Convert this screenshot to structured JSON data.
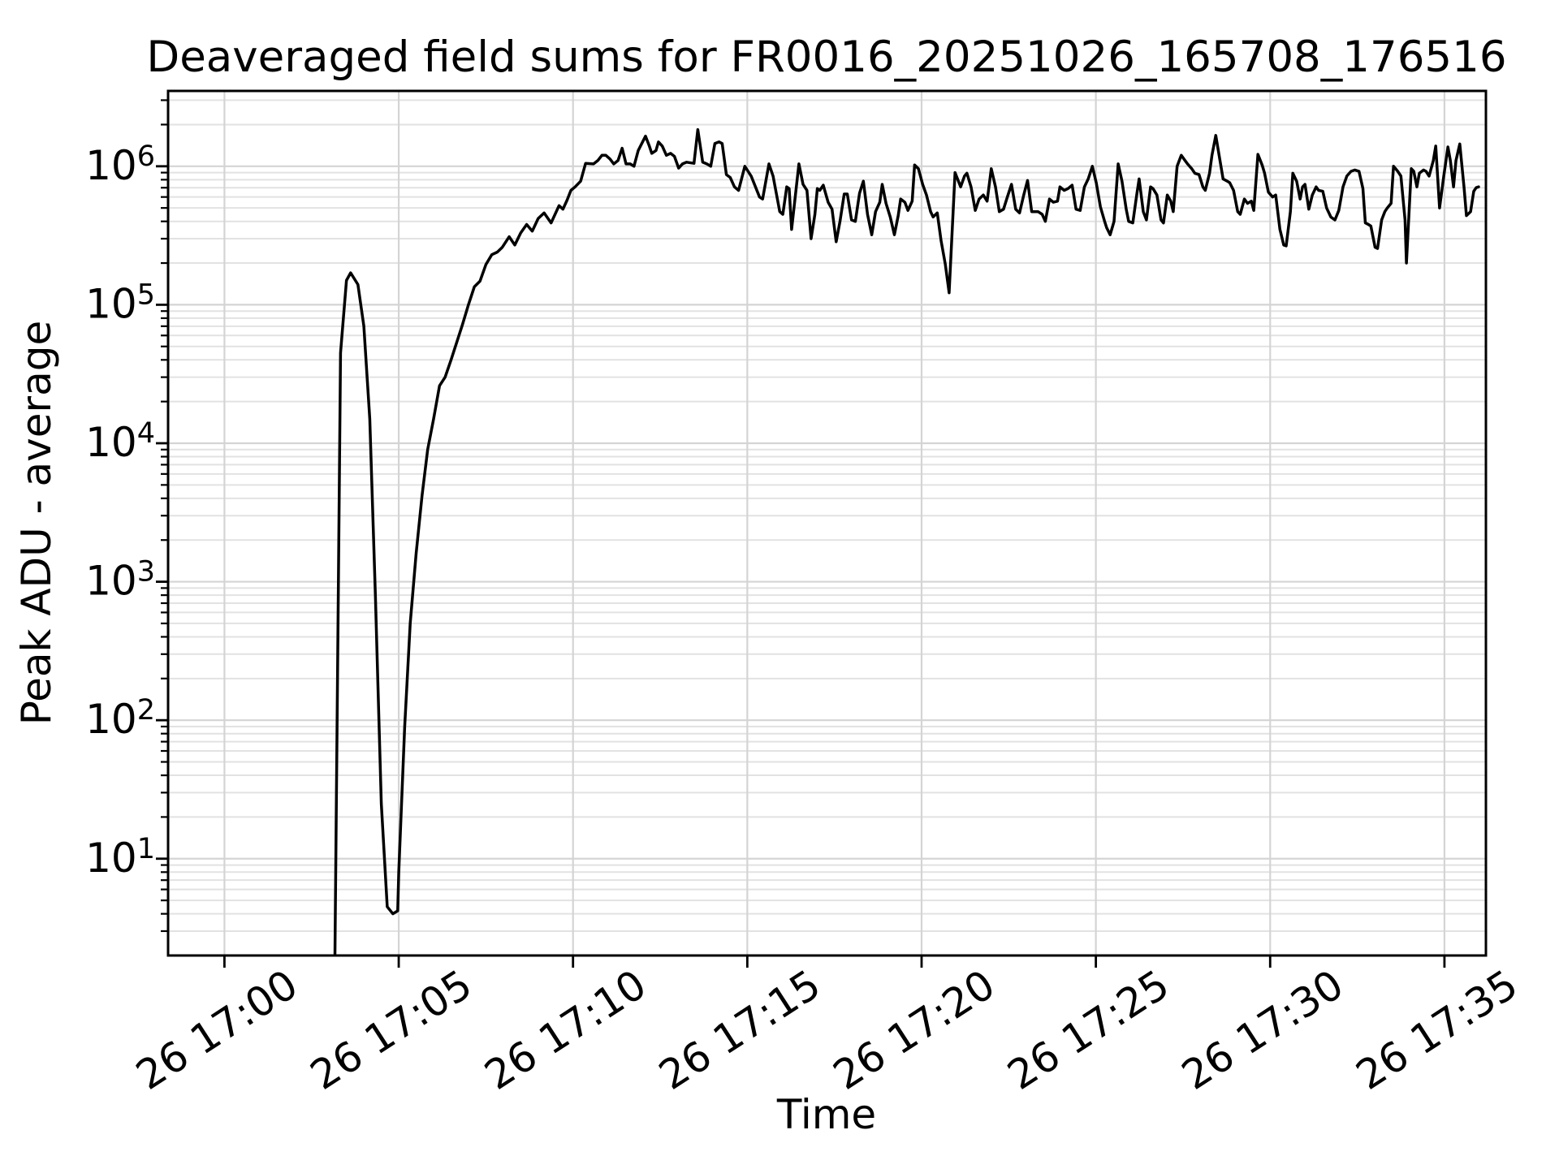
{
  "chart_data": {
    "type": "line",
    "title": "Deaveraged field sums for FR0016_20251026_165708_176516",
    "xlabel": "Time",
    "ylabel": "Peak ADU - average",
    "legend": null,
    "grid": {
      "major": true,
      "minor": true,
      "major_color": "#d4d4d4",
      "minor_color": "#e2e2e2"
    },
    "line_color": "#000000",
    "background_color": "#ffffff",
    "x_axis": {
      "unit": "minutes after 26th 17:00",
      "range_minutes": [
        -1.617,
        36.19
      ],
      "major_ticks_minutes": [
        0,
        5,
        10,
        15,
        20,
        25,
        30,
        35
      ],
      "major_tick_labels": [
        "26 17:00",
        "26 17:05",
        "26 17:10",
        "26 17:15",
        "26 17:20",
        "26 17:25",
        "26 17:30",
        "26 17:35"
      ],
      "label_rotation_deg": 33
    },
    "y_axis": {
      "scale": "log",
      "range": [
        2.0,
        3500000
      ],
      "major_tick_exponents": [
        1,
        2,
        3,
        4,
        5,
        6
      ],
      "minor_tick_multiples": [
        2,
        3,
        4,
        5,
        6,
        7,
        8,
        9
      ]
    },
    "series": [
      {
        "name": "deaveraged-field-sum",
        "points_t_minutes_value": [
          [
            3.17,
            2
          ],
          [
            3.33,
            45000
          ],
          [
            3.5,
            150000
          ],
          [
            3.62,
            170000
          ],
          [
            3.83,
            140000
          ],
          [
            4.0,
            70000
          ],
          [
            4.17,
            15000
          ],
          [
            4.33,
            800
          ],
          [
            4.5,
            25
          ],
          [
            4.67,
            4.5
          ],
          [
            4.83,
            4
          ],
          [
            4.97,
            4.2
          ],
          [
            5.0,
            8
          ],
          [
            5.17,
            90
          ],
          [
            5.33,
            500
          ],
          [
            5.5,
            1600
          ],
          [
            5.67,
            4200
          ],
          [
            5.83,
            9000
          ],
          [
            6.0,
            15000
          ],
          [
            6.17,
            26000
          ],
          [
            6.33,
            30000
          ],
          [
            6.5,
            40000
          ],
          [
            6.67,
            54000
          ],
          [
            6.83,
            72000
          ],
          [
            7.0,
            100000
          ],
          [
            7.17,
            135000
          ],
          [
            7.33,
            148000
          ],
          [
            7.5,
            195000
          ],
          [
            7.67,
            230000
          ],
          [
            7.83,
            240000
          ],
          [
            7.97,
            260000
          ],
          [
            8.17,
            310000
          ],
          [
            8.33,
            270000
          ],
          [
            8.5,
            330000
          ],
          [
            8.67,
            380000
          ],
          [
            8.83,
            340000
          ],
          [
            9.0,
            420000
          ],
          [
            9.17,
            460000
          ],
          [
            9.37,
            390000
          ],
          [
            9.6,
            520000
          ],
          [
            9.71,
            490000
          ],
          [
            9.83,
            570000
          ],
          [
            9.94,
            670000
          ],
          [
            10.06,
            710000
          ],
          [
            10.22,
            780000
          ],
          [
            10.36,
            1050000
          ],
          [
            10.59,
            1040000
          ],
          [
            10.71,
            1100000
          ],
          [
            10.83,
            1200000
          ],
          [
            10.94,
            1200000
          ],
          [
            11.06,
            1130000
          ],
          [
            11.17,
            1040000
          ],
          [
            11.29,
            1100000
          ],
          [
            11.41,
            1350000
          ],
          [
            11.52,
            1040000
          ],
          [
            11.64,
            1040000
          ],
          [
            11.75,
            1000000
          ],
          [
            11.87,
            1300000
          ],
          [
            12.08,
            1650000
          ],
          [
            12.19,
            1400000
          ],
          [
            12.26,
            1240000
          ],
          [
            12.38,
            1300000
          ],
          [
            12.45,
            1500000
          ],
          [
            12.56,
            1400000
          ],
          [
            12.68,
            1200000
          ],
          [
            12.8,
            1240000
          ],
          [
            12.91,
            1180000
          ],
          [
            13.03,
            970000
          ],
          [
            13.14,
            1040000
          ],
          [
            13.26,
            1070000
          ],
          [
            13.47,
            1050000
          ],
          [
            13.58,
            1840000
          ],
          [
            13.72,
            1070000
          ],
          [
            13.84,
            1040000
          ],
          [
            13.95,
            1000000
          ],
          [
            14.07,
            1460000
          ],
          [
            14.19,
            1500000
          ],
          [
            14.28,
            1460000
          ],
          [
            14.4,
            870000
          ],
          [
            14.51,
            830000
          ],
          [
            14.63,
            710000
          ],
          [
            14.75,
            670000
          ],
          [
            14.93,
            1000000
          ],
          [
            15.11,
            850000
          ],
          [
            15.35,
            600000
          ],
          [
            15.44,
            580000
          ],
          [
            15.62,
            1040000
          ],
          [
            15.74,
            850000
          ],
          [
            15.93,
            470000
          ],
          [
            16.02,
            450000
          ],
          [
            16.13,
            710000
          ],
          [
            16.2,
            690000
          ],
          [
            16.27,
            350000
          ],
          [
            16.48,
            1040000
          ],
          [
            16.6,
            740000
          ],
          [
            16.71,
            670000
          ],
          [
            16.83,
            300000
          ],
          [
            16.94,
            450000
          ],
          [
            17.01,
            690000
          ],
          [
            17.08,
            670000
          ],
          [
            17.18,
            730000
          ],
          [
            17.32,
            550000
          ],
          [
            17.43,
            490000
          ],
          [
            17.55,
            285000
          ],
          [
            17.66,
            400000
          ],
          [
            17.78,
            630000
          ],
          [
            17.87,
            630000
          ],
          [
            17.99,
            410000
          ],
          [
            18.1,
            400000
          ],
          [
            18.22,
            640000
          ],
          [
            18.33,
            780000
          ],
          [
            18.45,
            450000
          ],
          [
            18.57,
            320000
          ],
          [
            18.68,
            470000
          ],
          [
            18.8,
            550000
          ],
          [
            18.87,
            740000
          ],
          [
            18.98,
            540000
          ],
          [
            19.1,
            430000
          ],
          [
            19.22,
            320000
          ],
          [
            19.33,
            440000
          ],
          [
            19.4,
            580000
          ],
          [
            19.52,
            550000
          ],
          [
            19.61,
            480000
          ],
          [
            19.73,
            560000
          ],
          [
            19.8,
            1020000
          ],
          [
            19.91,
            960000
          ],
          [
            20.03,
            740000
          ],
          [
            20.14,
            620000
          ],
          [
            20.26,
            470000
          ],
          [
            20.33,
            430000
          ],
          [
            20.45,
            460000
          ],
          [
            20.56,
            290000
          ],
          [
            20.68,
            196000
          ],
          [
            20.79,
            122000
          ],
          [
            20.96,
            900000
          ],
          [
            21.12,
            710000
          ],
          [
            21.23,
            850000
          ],
          [
            21.3,
            890000
          ],
          [
            21.42,
            710000
          ],
          [
            21.54,
            480000
          ],
          [
            21.65,
            580000
          ],
          [
            21.77,
            620000
          ],
          [
            21.88,
            560000
          ],
          [
            22.0,
            960000
          ],
          [
            22.12,
            710000
          ],
          [
            22.23,
            470000
          ],
          [
            22.35,
            490000
          ],
          [
            22.46,
            600000
          ],
          [
            22.58,
            740000
          ],
          [
            22.7,
            490000
          ],
          [
            22.81,
            460000
          ],
          [
            22.93,
            620000
          ],
          [
            23.04,
            790000
          ],
          [
            23.16,
            470000
          ],
          [
            23.34,
            470000
          ],
          [
            23.46,
            450000
          ],
          [
            23.55,
            400000
          ],
          [
            23.67,
            580000
          ],
          [
            23.78,
            550000
          ],
          [
            23.9,
            560000
          ],
          [
            23.97,
            710000
          ],
          [
            24.09,
            670000
          ],
          [
            24.2,
            690000
          ],
          [
            24.32,
            730000
          ],
          [
            24.43,
            490000
          ],
          [
            24.55,
            480000
          ],
          [
            24.67,
            710000
          ],
          [
            24.78,
            810000
          ],
          [
            24.9,
            1000000
          ],
          [
            25.01,
            760000
          ],
          [
            25.13,
            510000
          ],
          [
            25.25,
            400000
          ],
          [
            25.31,
            360000
          ],
          [
            25.41,
            320000
          ],
          [
            25.52,
            400000
          ],
          [
            25.64,
            1040000
          ],
          [
            25.75,
            780000
          ],
          [
            25.87,
            490000
          ],
          [
            25.94,
            400000
          ],
          [
            26.06,
            390000
          ],
          [
            26.17,
            620000
          ],
          [
            26.24,
            810000
          ],
          [
            26.36,
            470000
          ],
          [
            26.45,
            410000
          ],
          [
            26.57,
            710000
          ],
          [
            26.64,
            690000
          ],
          [
            26.75,
            620000
          ],
          [
            26.87,
            410000
          ],
          [
            26.94,
            390000
          ],
          [
            27.05,
            620000
          ],
          [
            27.15,
            560000
          ],
          [
            27.22,
            470000
          ],
          [
            27.33,
            1000000
          ],
          [
            27.45,
            1200000
          ],
          [
            27.56,
            1100000
          ],
          [
            27.63,
            1040000
          ],
          [
            27.75,
            960000
          ],
          [
            27.84,
            890000
          ],
          [
            27.96,
            870000
          ],
          [
            28.07,
            710000
          ],
          [
            28.14,
            670000
          ],
          [
            28.26,
            890000
          ],
          [
            28.33,
            1200000
          ],
          [
            28.44,
            1670000
          ],
          [
            28.56,
            1100000
          ],
          [
            28.65,
            810000
          ],
          [
            28.77,
            780000
          ],
          [
            28.84,
            760000
          ],
          [
            28.95,
            670000
          ],
          [
            29.07,
            470000
          ],
          [
            29.14,
            450000
          ],
          [
            29.26,
            580000
          ],
          [
            29.35,
            540000
          ],
          [
            29.46,
            560000
          ],
          [
            29.53,
            480000
          ],
          [
            29.65,
            1220000
          ],
          [
            29.77,
            1020000
          ],
          [
            29.84,
            890000
          ],
          [
            29.95,
            650000
          ],
          [
            30.07,
            600000
          ],
          [
            30.16,
            620000
          ],
          [
            30.28,
            350000
          ],
          [
            30.39,
            270000
          ],
          [
            30.46,
            266000
          ],
          [
            30.58,
            470000
          ],
          [
            30.65,
            890000
          ],
          [
            30.76,
            780000
          ],
          [
            30.86,
            580000
          ],
          [
            30.93,
            710000
          ],
          [
            31.0,
            740000
          ],
          [
            31.11,
            490000
          ],
          [
            31.21,
            620000
          ],
          [
            31.32,
            710000
          ],
          [
            31.39,
            670000
          ],
          [
            31.51,
            660000
          ],
          [
            31.62,
            500000
          ],
          [
            31.74,
            430000
          ],
          [
            31.86,
            410000
          ],
          [
            31.97,
            480000
          ],
          [
            32.09,
            710000
          ],
          [
            32.2,
            850000
          ],
          [
            32.32,
            920000
          ],
          [
            32.43,
            940000
          ],
          [
            32.55,
            920000
          ],
          [
            32.66,
            690000
          ],
          [
            32.73,
            390000
          ],
          [
            32.82,
            380000
          ],
          [
            32.89,
            370000
          ],
          [
            33.01,
            260000
          ],
          [
            33.08,
            255000
          ],
          [
            33.2,
            410000
          ],
          [
            33.29,
            470000
          ],
          [
            33.36,
            500000
          ],
          [
            33.47,
            540000
          ],
          [
            33.54,
            1000000
          ],
          [
            33.66,
            920000
          ],
          [
            33.75,
            850000
          ],
          [
            33.87,
            410000
          ],
          [
            33.91,
            200000
          ],
          [
            34.05,
            960000
          ],
          [
            34.12,
            920000
          ],
          [
            34.21,
            710000
          ],
          [
            34.28,
            890000
          ],
          [
            34.4,
            940000
          ],
          [
            34.47,
            920000
          ],
          [
            34.56,
            850000
          ],
          [
            34.68,
            1100000
          ],
          [
            34.75,
            1400000
          ],
          [
            34.86,
            500000
          ],
          [
            34.98,
            850000
          ],
          [
            35.1,
            1380000
          ],
          [
            35.17,
            1100000
          ],
          [
            35.26,
            710000
          ],
          [
            35.33,
            1100000
          ],
          [
            35.44,
            1450000
          ],
          [
            35.56,
            710000
          ],
          [
            35.63,
            440000
          ],
          [
            35.75,
            470000
          ],
          [
            35.84,
            660000
          ],
          [
            35.91,
            700000
          ],
          [
            35.98,
            710000
          ]
        ]
      }
    ]
  }
}
